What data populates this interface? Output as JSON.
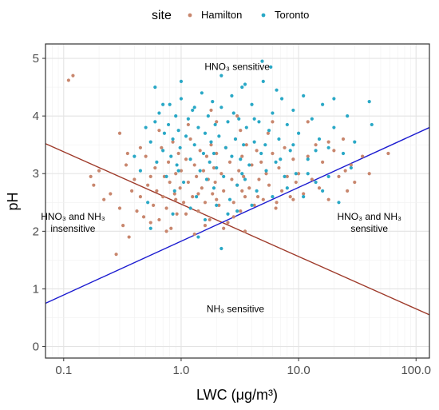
{
  "chart_data": {
    "type": "scatter",
    "xlabel": "LWC (μg/m³)",
    "ylabel": "pH",
    "x_scale": "log10",
    "xlim": [
      0.07,
      130
    ],
    "ylim": [
      -0.2,
      5.25
    ],
    "x_ticks": [
      0.1,
      1,
      10,
      100
    ],
    "x_tick_labels": [
      "0.1",
      "1.0",
      "10.0",
      "100.0"
    ],
    "y_ticks": [
      0,
      1,
      2,
      3,
      4,
      5
    ],
    "y_tick_labels": [
      "0",
      "1",
      "2",
      "3",
      "4",
      "5"
    ],
    "grid": true,
    "legend": {
      "title": "site",
      "placement": "top",
      "entries": [
        {
          "label": "Hamilton",
          "color": "#c8866d"
        },
        {
          "label": "Toronto",
          "color": "#29a8c6"
        }
      ]
    },
    "lines": [
      {
        "color": "#9e3a2a",
        "points": [
          [
            0.07,
            3.52
          ],
          [
            130,
            0.55
          ]
        ]
      },
      {
        "color": "#1b1bd0",
        "points": [
          [
            0.07,
            0.75
          ],
          [
            130,
            3.8
          ]
        ]
      }
    ],
    "annotations": [
      {
        "lines": [
          "HNO₃ sensitive"
        ],
        "x": 3.0,
        "y": 4.8
      },
      {
        "lines": [
          "HNO₃ and NH₃",
          "insensitive"
        ],
        "x": 0.12,
        "y": 2.1
      },
      {
        "lines": [
          "HNO₃ and NH₃",
          "sensitive"
        ],
        "x": 40,
        "y": 2.1
      },
      {
        "lines": [
          "NH₃ sensitive"
        ],
        "x": 2.9,
        "y": 0.6
      }
    ],
    "series": [
      {
        "name": "Hamilton",
        "color": "#c8866d",
        "points": [
          [
            0.11,
            4.62
          ],
          [
            0.12,
            4.7
          ],
          [
            0.18,
            2.8
          ],
          [
            0.22,
            2.55
          ],
          [
            0.25,
            2.65
          ],
          [
            0.28,
            1.6
          ],
          [
            0.3,
            2.4
          ],
          [
            0.32,
            2.1
          ],
          [
            0.34,
            3.15
          ],
          [
            0.36,
            1.9
          ],
          [
            0.38,
            2.7
          ],
          [
            0.4,
            2.9
          ],
          [
            0.42,
            2.35
          ],
          [
            0.45,
            2.6
          ],
          [
            0.48,
            2.25
          ],
          [
            0.5,
            3.3
          ],
          [
            0.52,
            2.8
          ],
          [
            0.55,
            2.95
          ],
          [
            0.58,
            2.45
          ],
          [
            0.6,
            3.1
          ],
          [
            0.62,
            2.7
          ],
          [
            0.65,
            2.2
          ],
          [
            0.68,
            3.45
          ],
          [
            0.7,
            2.6
          ],
          [
            0.72,
            2.95
          ],
          [
            0.75,
            2.4
          ],
          [
            0.78,
            3.2
          ],
          [
            0.8,
            2.85
          ],
          [
            0.82,
            2.05
          ],
          [
            0.85,
            3.55
          ],
          [
            0.88,
            2.65
          ],
          [
            0.9,
            3.0
          ],
          [
            0.92,
            2.3
          ],
          [
            0.95,
            3.35
          ],
          [
            0.98,
            2.75
          ],
          [
            1.0,
            3.05
          ],
          [
            1.05,
            2.5
          ],
          [
            1.1,
            3.25
          ],
          [
            1.15,
            2.85
          ],
          [
            1.2,
            3.6
          ],
          [
            1.25,
            2.6
          ],
          [
            1.3,
            3.15
          ],
          [
            1.35,
            2.95
          ],
          [
            1.4,
            2.35
          ],
          [
            1.45,
            3.4
          ],
          [
            1.5,
            2.75
          ],
          [
            1.55,
            3.05
          ],
          [
            1.6,
            2.5
          ],
          [
            1.65,
            3.3
          ],
          [
            1.7,
            2.9
          ],
          [
            1.75,
            2.2
          ],
          [
            1.8,
            3.5
          ],
          [
            1.85,
            2.65
          ],
          [
            1.9,
            3.1
          ],
          [
            1.95,
            2.85
          ],
          [
            2.0,
            3.35
          ],
          [
            2.1,
            2.45
          ],
          [
            2.2,
            3.0
          ],
          [
            2.3,
            2.7
          ],
          [
            2.4,
            3.45
          ],
          [
            2.5,
            2.15
          ],
          [
            2.6,
            3.2
          ],
          [
            2.7,
            2.9
          ],
          [
            2.8,
            2.5
          ],
          [
            2.9,
            3.6
          ],
          [
            3.0,
            2.8
          ],
          [
            3.1,
            3.05
          ],
          [
            3.2,
            2.35
          ],
          [
            3.3,
            3.3
          ],
          [
            3.4,
            2.95
          ],
          [
            3.5,
            2.6
          ],
          [
            3.6,
            3.5
          ],
          [
            3.8,
            2.75
          ],
          [
            4.0,
            3.15
          ],
          [
            4.2,
            2.45
          ],
          [
            4.4,
            3.4
          ],
          [
            4.6,
            2.9
          ],
          [
            4.8,
            3.2
          ],
          [
            5.0,
            2.55
          ],
          [
            5.3,
            3.0
          ],
          [
            5.6,
            2.8
          ],
          [
            6.0,
            3.35
          ],
          [
            6.4,
            2.4
          ],
          [
            6.8,
            3.1
          ],
          [
            7.2,
            2.7
          ],
          [
            7.6,
            3.45
          ],
          [
            8.0,
            2.95
          ],
          [
            8.5,
            2.6
          ],
          [
            9.0,
            3.25
          ],
          [
            9.5,
            2.85
          ],
          [
            10.0,
            3.0
          ],
          [
            11.0,
            2.65
          ],
          [
            12.0,
            3.3
          ],
          [
            13.0,
            2.9
          ],
          [
            14.0,
            3.5
          ],
          [
            15.0,
            2.75
          ],
          [
            16.0,
            3.2
          ],
          [
            18.0,
            2.55
          ],
          [
            20.0,
            3.4
          ],
          [
            22.0,
            2.95
          ],
          [
            24.0,
            3.6
          ],
          [
            26.0,
            2.7
          ],
          [
            28.0,
            3.15
          ],
          [
            30.0,
            2.85
          ],
          [
            35.0,
            3.3
          ],
          [
            58.0,
            3.35
          ],
          [
            0.75,
            2.0
          ],
          [
            1.1,
            2.3
          ],
          [
            1.6,
            2.1
          ],
          [
            2.3,
            2.05
          ],
          [
            2.8,
            2.25
          ],
          [
            3.5,
            2.0
          ],
          [
            0.55,
            2.15
          ],
          [
            1.3,
            1.95
          ],
          [
            0.9,
            2.55
          ],
          [
            1.4,
            2.65
          ],
          [
            2.0,
            2.55
          ],
          [
            3.3,
            2.7
          ],
          [
            4.5,
            2.6
          ],
          [
            6.5,
            2.5
          ],
          [
            9.0,
            2.55
          ],
          [
            0.65,
            3.75
          ],
          [
            1.15,
            3.85
          ],
          [
            2.0,
            3.9
          ],
          [
            3.2,
            3.75
          ],
          [
            5.5,
            3.7
          ],
          [
            1.8,
            4.1
          ],
          [
            3.0,
            4.0
          ],
          [
            0.3,
            3.7
          ],
          [
            0.45,
            3.45
          ],
          [
            0.35,
            3.35
          ],
          [
            12.0,
            3.9
          ],
          [
            18.0,
            3.55
          ],
          [
            25.0,
            3.05
          ],
          [
            40.0,
            3.0
          ],
          [
            0.2,
            3.05
          ],
          [
            0.17,
            2.95
          ],
          [
            6.0,
            3.9
          ]
        ]
      },
      {
        "name": "Toronto",
        "color": "#29a8c6",
        "points": [
          [
            0.5,
            3.8
          ],
          [
            0.55,
            3.55
          ],
          [
            0.6,
            3.9
          ],
          [
            0.62,
            3.2
          ],
          [
            0.65,
            4.05
          ],
          [
            0.7,
            3.4
          ],
          [
            0.72,
            3.7
          ],
          [
            0.75,
            2.95
          ],
          [
            0.78,
            3.85
          ],
          [
            0.8,
            4.2
          ],
          [
            0.82,
            3.3
          ],
          [
            0.85,
            3.6
          ],
          [
            0.88,
            2.7
          ],
          [
            0.9,
            4.0
          ],
          [
            0.92,
            3.15
          ],
          [
            0.95,
            3.75
          ],
          [
            0.98,
            3.45
          ],
          [
            1.0,
            4.3
          ],
          [
            1.05,
            2.85
          ],
          [
            1.1,
            3.65
          ],
          [
            1.15,
            3.95
          ],
          [
            1.2,
            3.25
          ],
          [
            1.25,
            4.1
          ],
          [
            1.3,
            3.5
          ],
          [
            1.35,
            2.6
          ],
          [
            1.4,
            3.8
          ],
          [
            1.45,
            3.05
          ],
          [
            1.5,
            4.4
          ],
          [
            1.55,
            3.35
          ],
          [
            1.6,
            3.7
          ],
          [
            1.65,
            2.9
          ],
          [
            1.7,
            4.0
          ],
          [
            1.75,
            3.2
          ],
          [
            1.8,
            3.55
          ],
          [
            1.85,
            4.25
          ],
          [
            1.9,
            2.75
          ],
          [
            1.95,
            3.85
          ],
          [
            2.0,
            3.1
          ],
          [
            2.1,
            3.65
          ],
          [
            2.2,
            4.15
          ],
          [
            2.3,
            2.95
          ],
          [
            2.4,
            3.45
          ],
          [
            2.5,
            3.9
          ],
          [
            2.6,
            2.55
          ],
          [
            2.7,
            3.3
          ],
          [
            2.8,
            4.05
          ],
          [
            2.9,
            3.6
          ],
          [
            3.0,
            2.8
          ],
          [
            3.1,
            3.95
          ],
          [
            3.2,
            3.25
          ],
          [
            3.3,
            4.5
          ],
          [
            3.4,
            3.5
          ],
          [
            3.5,
            2.9
          ],
          [
            3.6,
            3.8
          ],
          [
            3.8,
            3.15
          ],
          [
            4.0,
            4.2
          ],
          [
            4.2,
            3.55
          ],
          [
            4.4,
            2.7
          ],
          [
            4.6,
            3.9
          ],
          [
            4.8,
            3.35
          ],
          [
            5.0,
            4.6
          ],
          [
            5.3,
            3.05
          ],
          [
            5.6,
            3.75
          ],
          [
            6.0,
            4.05
          ],
          [
            6.4,
            3.2
          ],
          [
            6.8,
            3.6
          ],
          [
            7.2,
            4.3
          ],
          [
            7.6,
            2.95
          ],
          [
            8.0,
            3.85
          ],
          [
            8.5,
            3.4
          ],
          [
            9.0,
            4.1
          ],
          [
            9.5,
            3.0
          ],
          [
            10.0,
            3.7
          ],
          [
            11.0,
            4.35
          ],
          [
            12.0,
            3.25
          ],
          [
            13.0,
            3.95
          ],
          [
            14.0,
            2.85
          ],
          [
            15.0,
            3.6
          ],
          [
            16.0,
            4.2
          ],
          [
            18.0,
            3.45
          ],
          [
            20.0,
            3.8
          ],
          [
            22.0,
            2.5
          ],
          [
            24.0,
            3.35
          ],
          [
            26.0,
            4.0
          ],
          [
            28.0,
            3.1
          ],
          [
            30.0,
            3.55
          ],
          [
            40.0,
            4.25
          ],
          [
            42.0,
            3.85
          ],
          [
            4.9,
            4.95
          ],
          [
            5.8,
            4.85
          ],
          [
            1.0,
            4.6
          ],
          [
            0.6,
            4.5
          ],
          [
            2.2,
            4.7
          ],
          [
            3.5,
            4.55
          ],
          [
            0.85,
            2.3
          ],
          [
            1.2,
            2.4
          ],
          [
            1.6,
            2.2
          ],
          [
            2.0,
            2.45
          ],
          [
            2.5,
            2.3
          ],
          [
            3.0,
            2.35
          ],
          [
            1.4,
            1.9
          ],
          [
            2.2,
            1.7
          ],
          [
            0.55,
            2.05
          ],
          [
            0.45,
            3.05
          ],
          [
            0.4,
            3.3
          ],
          [
            0.52,
            2.5
          ],
          [
            4.0,
            2.45
          ],
          [
            6.0,
            2.6
          ],
          [
            8.0,
            2.75
          ],
          [
            11.0,
            2.6
          ],
          [
            14.0,
            3.4
          ],
          [
            18.0,
            2.95
          ],
          [
            0.7,
            4.2
          ],
          [
            1.3,
            4.15
          ],
          [
            2.7,
            4.35
          ],
          [
            4.2,
            3.95
          ],
          [
            6.5,
            4.45
          ],
          [
            9.0,
            3.5
          ],
          [
            20.0,
            4.3
          ],
          [
            0.95,
            3.05
          ],
          [
            1.9,
            3.35
          ],
          [
            3.3,
            3.0
          ],
          [
            5.2,
            3.5
          ],
          [
            7.0,
            3.25
          ],
          [
            12.0,
            3.0
          ],
          [
            16.0,
            2.7
          ]
        ]
      }
    ]
  }
}
